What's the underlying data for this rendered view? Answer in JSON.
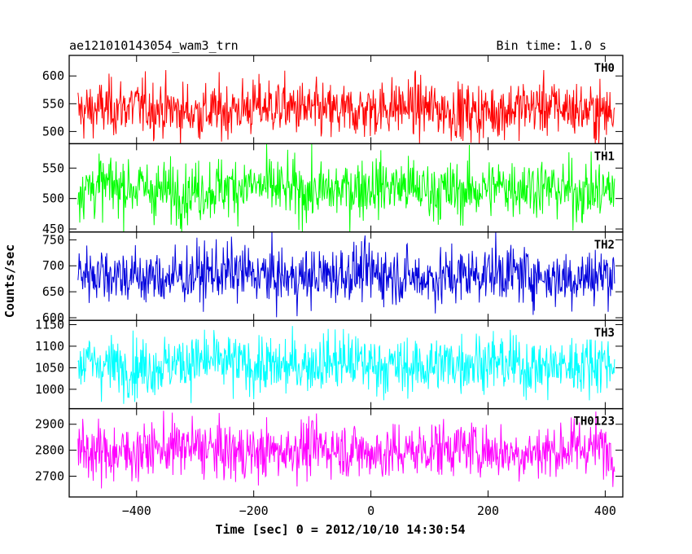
{
  "chart_data": {
    "type": "line",
    "title_left": "ae121010143054_wam3_trn",
    "title_right": "Bin time: 1.0 s",
    "xlabel": "Time [sec] 0 = 2012/10/10 14:30:54",
    "ylabel": "Counts/sec",
    "xlim": [
      -515,
      430
    ],
    "x_ticks": [
      -400,
      -200,
      0,
      200,
      400
    ],
    "x_range_data": [
      -500,
      416
    ],
    "bin_time": 1.0,
    "panels": [
      {
        "name": "TH0",
        "color": "#ff0000",
        "ylim": [
          478,
          637
        ],
        "yticks": [
          500,
          550,
          600
        ],
        "mean": 540,
        "spread": 34
      },
      {
        "name": "TH1",
        "color": "#00ff00",
        "ylim": [
          445,
          590
        ],
        "yticks": [
          450,
          500,
          550
        ],
        "mean": 516,
        "spread": 33
      },
      {
        "name": "TH2",
        "color": "#0000dd",
        "ylim": [
          595,
          765
        ],
        "yticks": [
          600,
          650,
          700,
          750
        ],
        "mean": 682,
        "spread": 37
      },
      {
        "name": "TH3",
        "color": "#00ffff",
        "ylim": [
          955,
          1160
        ],
        "yticks": [
          1000,
          1050,
          1100,
          1150
        ],
        "mean": 1058,
        "spread": 45
      },
      {
        "name": "TH0123",
        "color": "#ff00ff",
        "ylim": [
          2620,
          2960
        ],
        "yticks": [
          2700,
          2800,
          2900
        ],
        "mean": 2800,
        "spread": 72
      }
    ]
  }
}
